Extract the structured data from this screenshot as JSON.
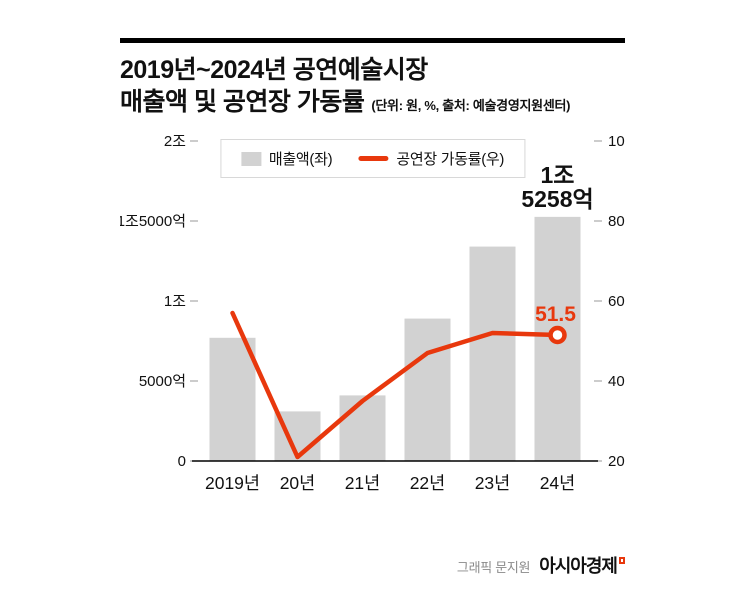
{
  "header": {
    "title_line1": "2019년~2024년 공연예술시장",
    "title_line2": "매출액 및 공연장 가동률",
    "subtitle": "(단위: 원, %, 출처: 예술경영지원센터)"
  },
  "chart_data": {
    "type": "bar+line",
    "title": "2019년~2024년 공연예술시장 매출액 및 공연장 가동률",
    "categories": [
      "2019년",
      "20년",
      "21년",
      "22년",
      "23년",
      "24년"
    ],
    "series": [
      {
        "name": "매출액(좌)",
        "type": "bar",
        "axis": "left",
        "unit": "억원",
        "values": [
          7700,
          3100,
          4100,
          8900,
          13400,
          15258
        ]
      },
      {
        "name": "공연장 가동률(우)",
        "type": "line",
        "axis": "right",
        "unit": "%",
        "values": [
          57,
          21,
          35,
          47,
          52,
          51.5
        ]
      }
    ],
    "left_axis": {
      "ticks_top_to_bottom": [
        "2조",
        "1조5000억",
        "1조",
        "5000억",
        "0"
      ],
      "min": 0,
      "max": 20000,
      "unit": "억원"
    },
    "right_axis": {
      "ticks_top_to_bottom": [
        "100",
        "80",
        "60",
        "40",
        "20"
      ],
      "min": 20,
      "max": 100,
      "unit": "%"
    },
    "annotations": {
      "last_bar_label_line1": "1조",
      "last_bar_label_line2": "5258억",
      "last_point_label": "51.5"
    },
    "legend_position": "top-center",
    "grid": false
  },
  "footer": {
    "credit": "그래픽 문지원",
    "brand": "아시아경제"
  },
  "colors": {
    "bar": "#d2d2d2",
    "line": "#e8380d",
    "text": "#111111",
    "tick": "#999999",
    "baseline": "#000000"
  }
}
